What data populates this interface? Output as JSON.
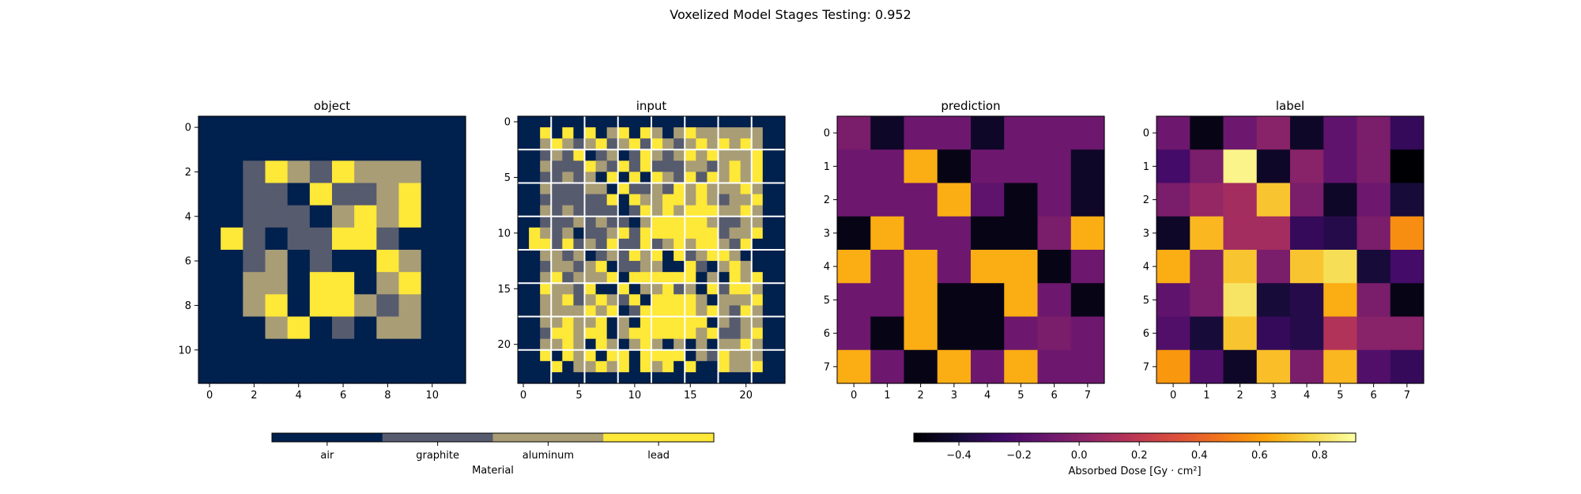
{
  "chart_data": {
    "suptitle": "Voxelized Model Stages Testing: 0.952",
    "panels": [
      {
        "id": "object",
        "type": "heatmap",
        "title": "object",
        "colormap": "material",
        "xticks": [
          0,
          2,
          4,
          6,
          8,
          10
        ],
        "yticks": [
          0,
          2,
          4,
          6,
          8,
          10
        ],
        "matrix": [
          [
            0,
            0,
            0,
            0,
            0,
            0,
            0,
            0,
            0,
            0,
            0,
            0
          ],
          [
            0,
            0,
            0,
            0,
            0,
            0,
            0,
            0,
            0,
            0,
            0,
            0
          ],
          [
            0,
            0,
            1,
            3,
            2,
            1,
            3,
            2,
            2,
            2,
            0,
            0
          ],
          [
            0,
            0,
            1,
            1,
            0,
            3,
            1,
            1,
            2,
            3,
            0,
            0
          ],
          [
            0,
            0,
            1,
            1,
            1,
            0,
            2,
            3,
            2,
            3,
            0,
            0
          ],
          [
            0,
            3,
            1,
            0,
            1,
            1,
            3,
            3,
            1,
            0,
            0,
            0
          ],
          [
            0,
            0,
            1,
            2,
            0,
            1,
            0,
            0,
            3,
            2,
            0,
            0
          ],
          [
            0,
            0,
            2,
            2,
            0,
            3,
            3,
            0,
            2,
            3,
            0,
            0
          ],
          [
            0,
            0,
            2,
            3,
            0,
            3,
            3,
            2,
            1,
            2,
            0,
            0
          ],
          [
            0,
            0,
            0,
            2,
            3,
            0,
            1,
            0,
            2,
            2,
            0,
            0
          ],
          [
            0,
            0,
            0,
            0,
            0,
            0,
            0,
            0,
            0,
            0,
            0,
            0
          ],
          [
            0,
            0,
            0,
            0,
            0,
            0,
            0,
            0,
            0,
            0,
            0,
            0
          ]
        ]
      },
      {
        "id": "input",
        "type": "heatmap",
        "title": "input",
        "colormap": "material",
        "xticks": [
          0,
          5,
          10,
          15,
          20
        ],
        "yticks": [
          0,
          5,
          10,
          15,
          20
        ],
        "grid_lines": [
          2.5,
          5.5,
          8.5,
          11.5,
          14.5,
          17.5,
          20.5
        ],
        "matrix": [
          [
            0,
            0,
            0,
            0,
            0,
            0,
            0,
            0,
            0,
            0,
            0,
            0,
            0,
            0,
            0,
            0,
            0,
            0,
            0,
            0,
            0,
            0,
            0,
            0
          ],
          [
            0,
            0,
            3,
            0,
            3,
            0,
            3,
            0,
            2,
            3,
            0,
            3,
            2,
            0,
            2,
            3,
            2,
            2,
            2,
            2,
            2,
            2,
            0,
            0
          ],
          [
            0,
            0,
            2,
            3,
            2,
            1,
            2,
            3,
            1,
            2,
            3,
            1,
            3,
            2,
            1,
            2,
            3,
            2,
            3,
            2,
            3,
            2,
            0,
            0
          ],
          [
            0,
            0,
            1,
            2,
            1,
            3,
            0,
            1,
            2,
            0,
            1,
            3,
            2,
            1,
            2,
            3,
            2,
            3,
            2,
            2,
            2,
            3,
            0,
            0
          ],
          [
            0,
            0,
            2,
            1,
            1,
            1,
            3,
            2,
            1,
            3,
            1,
            3,
            1,
            1,
            1,
            2,
            2,
            1,
            2,
            3,
            2,
            3,
            0,
            0
          ],
          [
            0,
            0,
            1,
            1,
            2,
            1,
            2,
            0,
            3,
            0,
            3,
            0,
            3,
            2,
            1,
            3,
            1,
            3,
            2,
            3,
            2,
            3,
            0,
            0
          ],
          [
            0,
            0,
            2,
            1,
            1,
            1,
            2,
            2,
            0,
            3,
            1,
            1,
            2,
            1,
            3,
            2,
            3,
            2,
            2,
            2,
            3,
            2,
            0,
            0
          ],
          [
            0,
            0,
            1,
            1,
            1,
            1,
            1,
            1,
            3,
            0,
            3,
            2,
            2,
            3,
            3,
            2,
            3,
            2,
            1,
            2,
            2,
            3,
            0,
            0
          ],
          [
            0,
            0,
            2,
            1,
            2,
            1,
            1,
            1,
            1,
            0,
            1,
            3,
            2,
            3,
            2,
            3,
            3,
            3,
            2,
            2,
            3,
            2,
            0,
            0
          ],
          [
            0,
            0,
            1,
            1,
            1,
            2,
            1,
            2,
            1,
            1,
            0,
            2,
            3,
            3,
            3,
            3,
            3,
            2,
            1,
            1,
            2,
            2,
            0,
            0
          ],
          [
            0,
            3,
            2,
            1,
            2,
            0,
            1,
            1,
            2,
            3,
            1,
            3,
            3,
            3,
            3,
            3,
            3,
            3,
            1,
            2,
            2,
            3,
            0,
            0
          ],
          [
            0,
            3,
            3,
            1,
            3,
            1,
            2,
            1,
            3,
            1,
            1,
            3,
            1,
            2,
            3,
            2,
            3,
            3,
            2,
            1,
            3,
            0,
            0,
            0
          ],
          [
            0,
            0,
            2,
            2,
            1,
            2,
            0,
            1,
            2,
            1,
            3,
            2,
            3,
            0,
            3,
            1,
            2,
            3,
            3,
            2,
            0,
            0,
            0,
            0
          ],
          [
            0,
            0,
            1,
            2,
            2,
            1,
            2,
            3,
            0,
            1,
            1,
            2,
            2,
            0,
            0,
            3,
            1,
            0,
            2,
            3,
            2,
            0,
            0,
            0
          ],
          [
            0,
            0,
            2,
            3,
            1,
            2,
            2,
            2,
            3,
            0,
            3,
            3,
            3,
            3,
            3,
            3,
            0,
            2,
            0,
            3,
            2,
            3,
            0,
            0
          ],
          [
            0,
            0,
            3,
            2,
            2,
            1,
            3,
            0,
            0,
            3,
            0,
            2,
            2,
            3,
            1,
            2,
            0,
            3,
            1,
            3,
            3,
            2,
            0,
            0
          ],
          [
            0,
            0,
            2,
            2,
            3,
            1,
            2,
            3,
            2,
            1,
            3,
            0,
            3,
            3,
            3,
            3,
            2,
            0,
            2,
            2,
            2,
            3,
            0,
            0
          ],
          [
            0,
            0,
            2,
            2,
            2,
            2,
            3,
            2,
            3,
            0,
            1,
            3,
            3,
            3,
            3,
            3,
            2,
            3,
            2,
            1,
            3,
            2,
            0,
            0
          ],
          [
            0,
            0,
            2,
            2,
            3,
            2,
            2,
            3,
            0,
            2,
            0,
            3,
            3,
            3,
            3,
            3,
            3,
            0,
            2,
            1,
            2,
            2,
            0,
            0
          ],
          [
            0,
            0,
            1,
            3,
            3,
            2,
            3,
            3,
            0,
            2,
            3,
            3,
            3,
            3,
            3,
            3,
            2,
            3,
            1,
            1,
            2,
            3,
            0,
            0
          ],
          [
            0,
            0,
            2,
            2,
            3,
            2,
            0,
            3,
            2,
            0,
            2,
            3,
            2,
            0,
            2,
            0,
            2,
            0,
            2,
            2,
            3,
            2,
            0,
            0
          ],
          [
            0,
            0,
            3,
            0,
            3,
            2,
            3,
            0,
            3,
            3,
            0,
            3,
            3,
            3,
            3,
            0,
            2,
            1,
            3,
            2,
            2,
            2,
            0,
            0
          ],
          [
            0,
            0,
            0,
            3,
            0,
            2,
            2,
            3,
            2,
            3,
            0,
            3,
            2,
            3,
            0,
            3,
            0,
            0,
            3,
            2,
            2,
            3,
            0,
            0
          ],
          [
            0,
            0,
            0,
            0,
            0,
            0,
            0,
            0,
            0,
            0,
            0,
            0,
            0,
            0,
            0,
            0,
            0,
            0,
            0,
            0,
            0,
            0,
            0,
            0
          ]
        ]
      },
      {
        "id": "prediction",
        "type": "heatmap",
        "title": "prediction",
        "colormap": "inferno",
        "xticks": [
          0,
          1,
          2,
          3,
          4,
          5,
          6,
          7
        ],
        "yticks": [
          0,
          1,
          2,
          3,
          4,
          5,
          6,
          7
        ],
        "matrix": [
          [
            -0.05,
            -0.45,
            -0.1,
            -0.1,
            -0.45,
            -0.1,
            -0.1,
            -0.1
          ],
          [
            -0.1,
            -0.1,
            0.65,
            -0.5,
            -0.1,
            -0.1,
            -0.1,
            -0.45
          ],
          [
            -0.1,
            -0.1,
            -0.1,
            0.65,
            -0.15,
            -0.5,
            -0.1,
            -0.45
          ],
          [
            -0.5,
            0.65,
            -0.1,
            -0.1,
            -0.5,
            -0.5,
            -0.05,
            0.65
          ],
          [
            0.65,
            -0.1,
            0.65,
            -0.1,
            0.65,
            0.65,
            -0.5,
            -0.1
          ],
          [
            -0.1,
            -0.1,
            0.65,
            -0.5,
            -0.5,
            0.65,
            -0.1,
            -0.5
          ],
          [
            -0.1,
            -0.5,
            0.65,
            -0.5,
            -0.5,
            -0.1,
            -0.05,
            -0.1
          ],
          [
            0.65,
            -0.1,
            -0.5,
            0.65,
            -0.1,
            0.65,
            -0.1,
            -0.1
          ]
        ]
      },
      {
        "id": "label",
        "type": "heatmap",
        "title": "label",
        "colormap": "inferno",
        "xticks": [
          0,
          1,
          2,
          3,
          4,
          5,
          6,
          7
        ],
        "yticks": [
          0,
          1,
          2,
          3,
          4,
          5,
          6,
          7
        ],
        "matrix": [
          [
            -0.1,
            -0.5,
            -0.1,
            0.0,
            -0.45,
            -0.15,
            -0.05,
            -0.3
          ],
          [
            -0.25,
            -0.05,
            0.88,
            -0.45,
            -0.0,
            -0.15,
            -0.05,
            -0.55
          ],
          [
            -0.05,
            0.05,
            0.1,
            0.72,
            -0.05,
            -0.45,
            -0.1,
            -0.4
          ],
          [
            -0.45,
            0.68,
            0.1,
            0.1,
            -0.3,
            -0.35,
            -0.05,
            0.55
          ],
          [
            0.65,
            -0.05,
            0.72,
            -0.05,
            0.72,
            0.8,
            -0.4,
            -0.25
          ],
          [
            -0.15,
            -0.05,
            0.82,
            -0.4,
            -0.35,
            0.65,
            -0.05,
            -0.5
          ],
          [
            -0.2,
            -0.4,
            0.72,
            -0.3,
            -0.35,
            0.15,
            0.0,
            0.0
          ],
          [
            0.58,
            -0.2,
            -0.45,
            0.7,
            -0.05,
            0.68,
            -0.2,
            -0.3
          ]
        ]
      }
    ],
    "material_colorbar": {
      "categories": [
        "air",
        "graphite",
        "aluminum",
        "lead"
      ],
      "colors": [
        "#00204d",
        "#565b6e",
        "#a99d76",
        "#fee838"
      ],
      "label": "Material"
    },
    "dose_colorbar": {
      "colormap": "inferno",
      "vmin": -0.55,
      "vmax": 0.92,
      "ticks": [
        -0.4,
        -0.2,
        0.0,
        0.2,
        0.4,
        0.6,
        0.8
      ],
      "tick_labels": [
        "−0.4",
        "−0.2",
        "0.0",
        "0.2",
        "0.4",
        "0.6",
        "0.8"
      ],
      "label": "Absorbed Dose [Gy · cm²]"
    }
  }
}
